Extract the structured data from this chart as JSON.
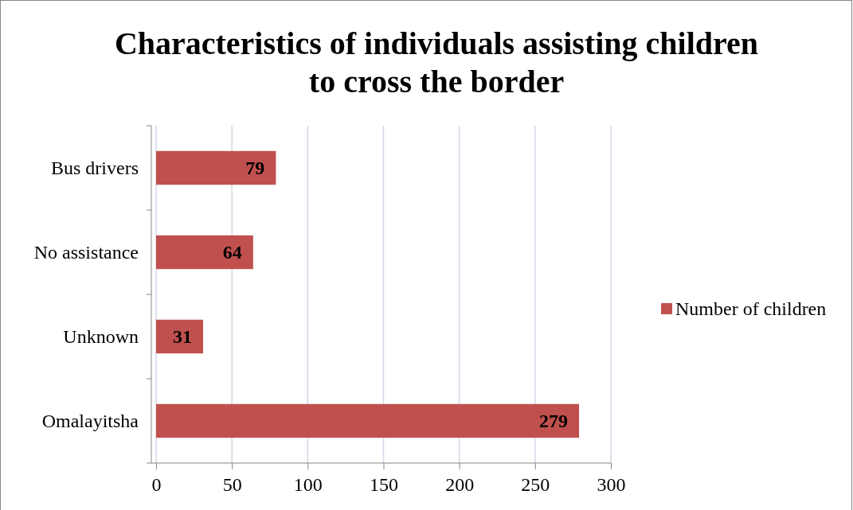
{
  "chart_data": {
    "type": "bar",
    "orientation": "horizontal",
    "title": "Characteristics of individuals assisting children to cross the border",
    "categories": [
      "Bus drivers",
      "No assistance",
      "Unknown",
      "Omalayitsha"
    ],
    "series": [
      {
        "name": "Number of children",
        "color": "#c0504d",
        "values": [
          79,
          64,
          31,
          279
        ]
      }
    ],
    "xlim": [
      0,
      300
    ],
    "xticks": [
      0,
      50,
      100,
      150,
      200,
      250,
      300
    ],
    "grid": "x",
    "legend": "right",
    "data_labels": true
  }
}
